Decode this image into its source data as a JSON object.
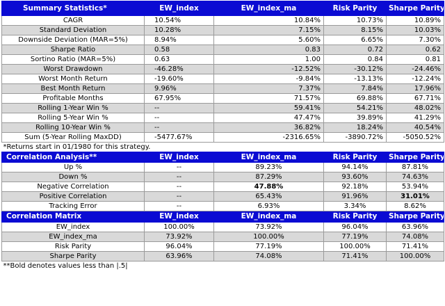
{
  "colors": {
    "header_bg": "#0b0bd3",
    "header_text": "#ffffff",
    "stripe": "#d9d9d9"
  },
  "summary": {
    "header": [
      "Summary Statistics*",
      "EW_index",
      "EW_index_ma",
      "Risk Parity",
      "Sharpe Parity"
    ],
    "rows": [
      [
        "CAGR",
        "10.54%",
        "10.84%",
        "10.73%",
        "10.89%"
      ],
      [
        "Standard Deviation",
        "10.28%",
        "7.15%",
        "8.15%",
        "10.03%"
      ],
      [
        "Downside Deviation (MAR=5%)",
        "8.94%",
        "5.60%",
        "6.65%",
        "7.30%"
      ],
      [
        "Sharpe Ratio",
        "0.58",
        "0.83",
        "0.72",
        "0.62"
      ],
      [
        "Sortino Ratio (MAR=5%)",
        "0.63",
        "1.00",
        "0.84",
        "0.81"
      ],
      [
        "Worst Drawdown",
        "-46.28%",
        "-12.52%",
        "-30.12%",
        "-24.46%"
      ],
      [
        "Worst Month Return",
        "-19.60%",
        "-9.84%",
        "-13.13%",
        "-12.24%"
      ],
      [
        "Best Month Return",
        "9.96%",
        "7.37%",
        "7.84%",
        "17.96%"
      ],
      [
        "Profitable Months",
        "67.95%",
        "71.57%",
        "69.88%",
        "67.71%"
      ],
      [
        "Rolling 1-Year Win %",
        "--",
        "59.41%",
        "54.21%",
        "48.02%"
      ],
      [
        "Rolling 5-Year Win %",
        "--",
        "47.47%",
        "39.89%",
        "41.29%"
      ],
      [
        "Rolling 10-Year Win %",
        "--",
        "36.82%",
        "18.24%",
        "40.54%"
      ],
      [
        "Sum (5-Year Rolling MaxDD)",
        "-5477.67%",
        "-2316.65%",
        "-3890.72%",
        "-5050.52%"
      ]
    ],
    "note": "*Returns start in 01/1980 for this strategy."
  },
  "correlation_analysis": {
    "header": [
      "Correlation Analysis**",
      "EW_index",
      "EW_index_ma",
      "Risk Parity",
      "Sharpe Parity"
    ],
    "rows": [
      [
        "Up %",
        "--",
        "89.23%",
        "94.14%",
        "87.81%"
      ],
      [
        "Down %",
        "--",
        "87.29%",
        "93.60%",
        "74.63%"
      ],
      [
        "Negative Correlation",
        "--",
        "47.88%",
        "92.18%",
        "53.94%"
      ],
      [
        "Positive Correlation",
        "--",
        "65.43%",
        "91.96%",
        "31.01%"
      ],
      [
        "Tracking Error",
        "--",
        "6.93%",
        "3.34%",
        "8.62%"
      ]
    ]
  },
  "correlation_matrix": {
    "header": [
      "Correlation Matrix",
      "EW_index",
      "EW_index_ma",
      "Risk Parity",
      "Sharpe Parity"
    ],
    "rows": [
      [
        "EW_index",
        "100.00%",
        "73.92%",
        "96.04%",
        "63.96%"
      ],
      [
        "EW_index_ma",
        "73.92%",
        "100.00%",
        "77.19%",
        "74.08%"
      ],
      [
        "Risk Parity",
        "96.04%",
        "77.19%",
        "100.00%",
        "71.41%"
      ],
      [
        "Sharpe Parity",
        "63.96%",
        "74.08%",
        "71.41%",
        "100.00%"
      ]
    ],
    "note": "**Bold denotes values less than |.5|"
  }
}
